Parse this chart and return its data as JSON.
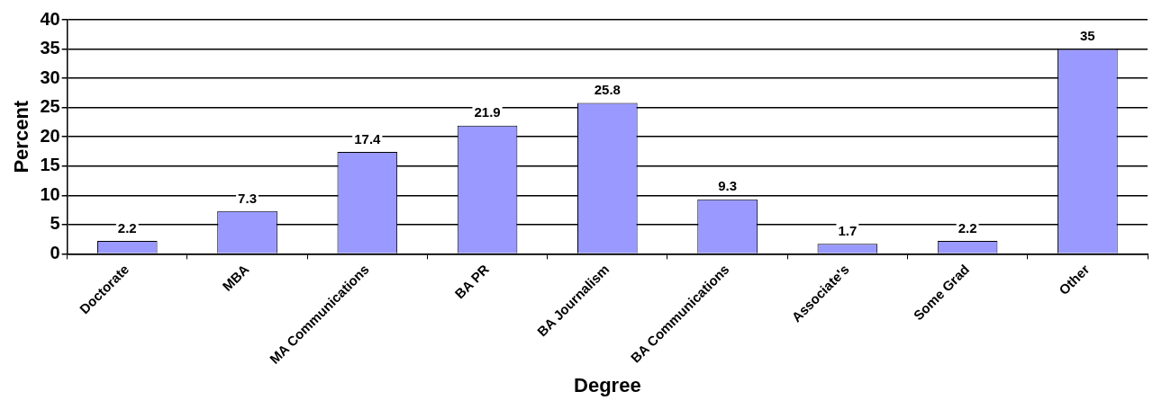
{
  "chart_data": {
    "type": "bar",
    "xlabel": "Degree",
    "ylabel": "Percent",
    "categories": [
      "Doctorate",
      "MBA",
      "MA Communications",
      "BA PR",
      "BA Journalism",
      "BA Communications",
      "Associate's",
      "Some Grad",
      "Other"
    ],
    "values": [
      2.2,
      7.3,
      17.4,
      21.9,
      25.8,
      9.3,
      1.7,
      2.2,
      35
    ],
    "color": "#9999ff",
    "ylim": [
      0,
      40
    ],
    "yticks": [
      0,
      5,
      10,
      15,
      20,
      25,
      30,
      35,
      40
    ],
    "grid": "y",
    "data_labels": true
  }
}
